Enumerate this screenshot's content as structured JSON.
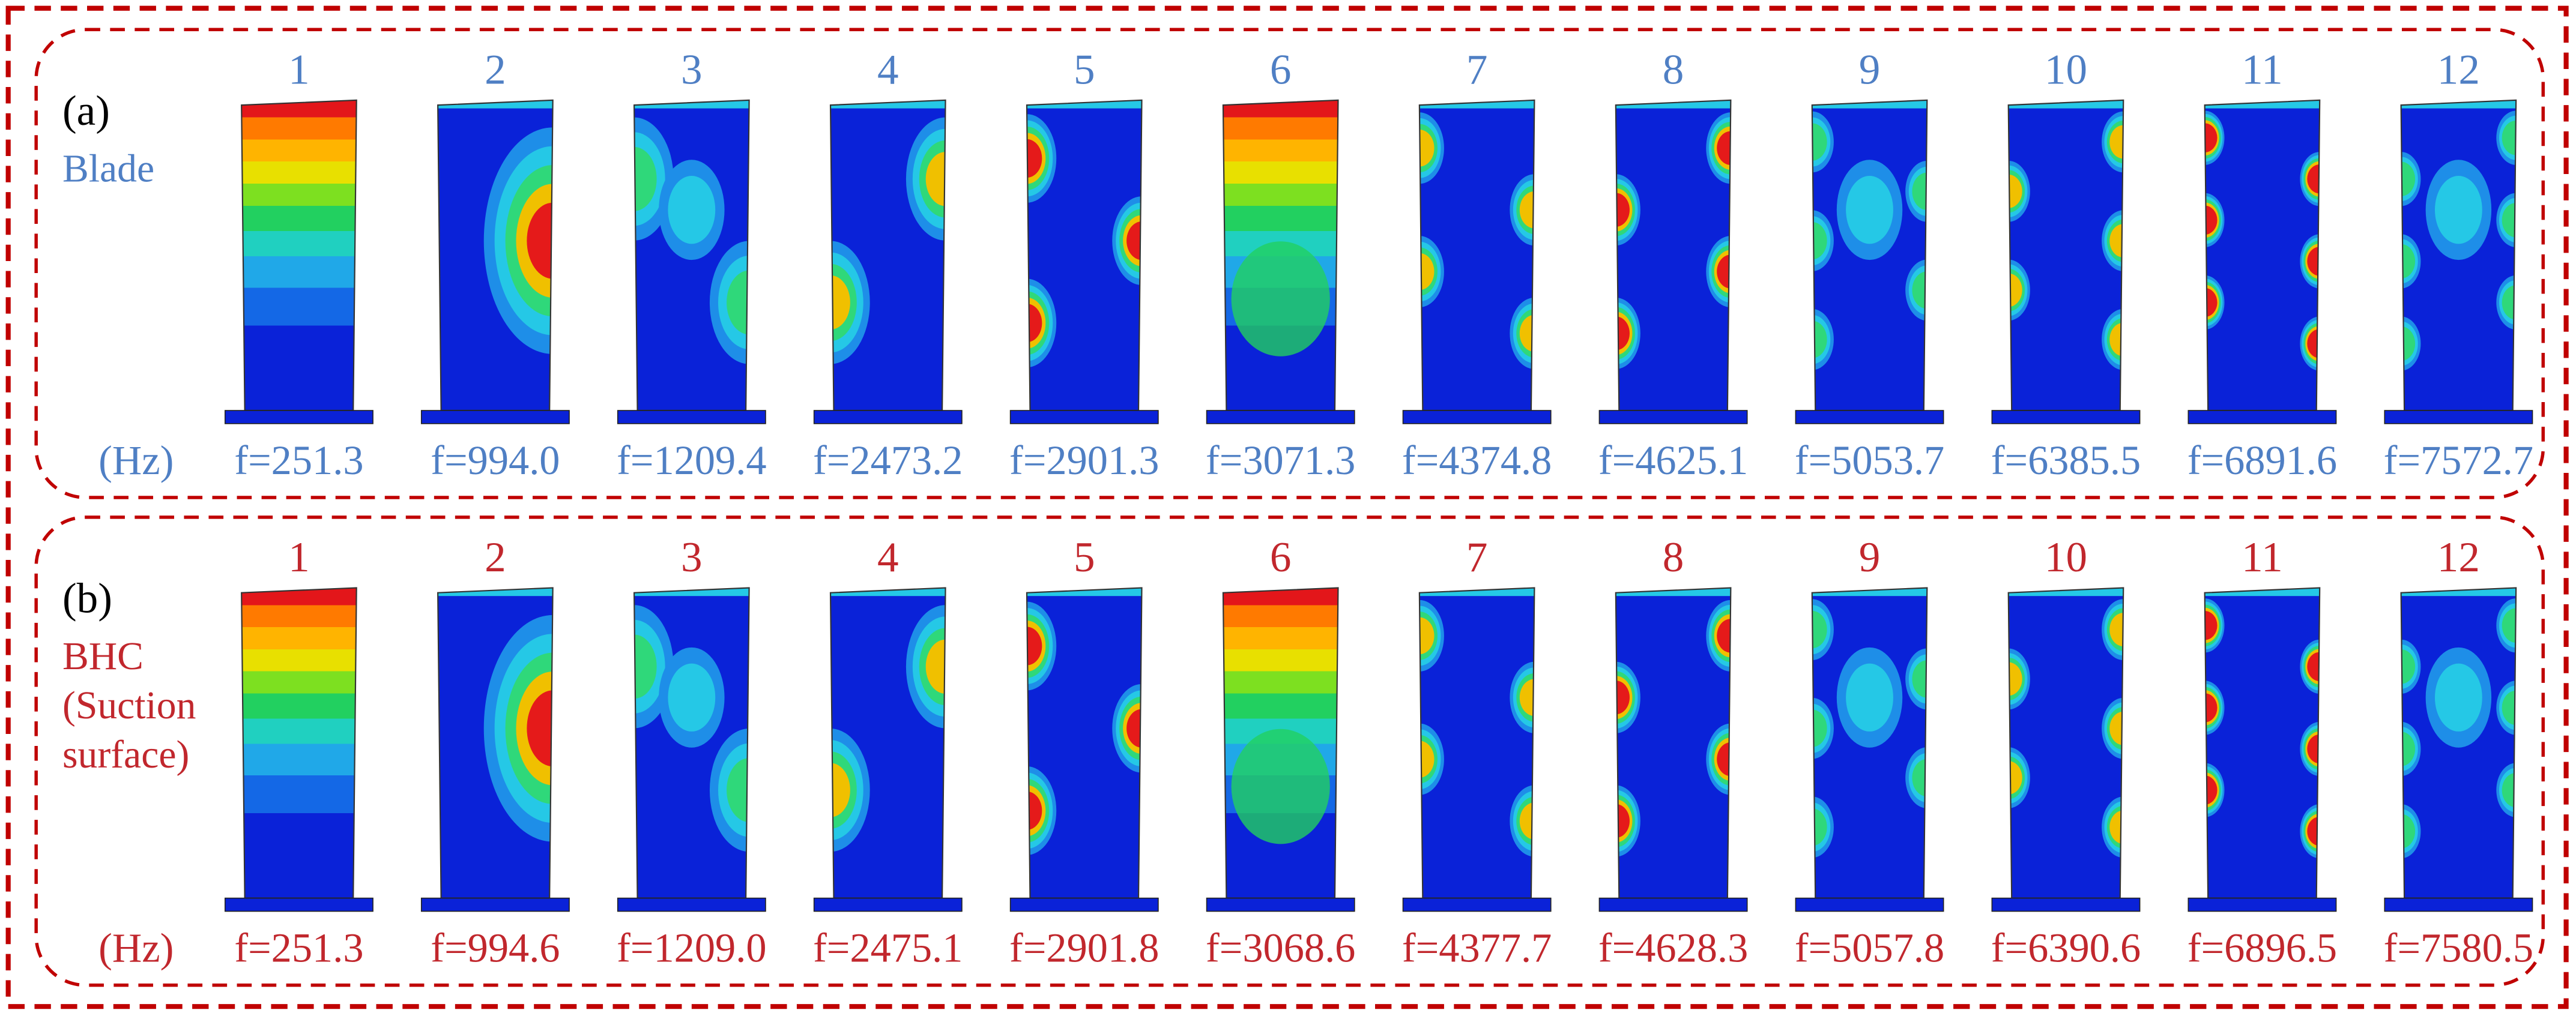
{
  "panels": [
    {
      "label": "(a)",
      "name": [
        "Blade"
      ],
      "unit": "(Hz)",
      "color": "#4f7fc4",
      "modes": [
        "1",
        "2",
        "3",
        "4",
        "5",
        "6",
        "7",
        "8",
        "9",
        "10",
        "11",
        "12"
      ],
      "frequencies": [
        "f=251.3",
        "f=994.0",
        "f=1209.4",
        "f=2473.2",
        "f=2901.3",
        "f=3071.3",
        "f=4374.8",
        "f=4625.1",
        "f=5053.7",
        "f=6385.5",
        "f=6891.6",
        "f=7572.7"
      ]
    },
    {
      "label": "(b)",
      "name": [
        "BHC",
        "(Suction",
        "surface)"
      ],
      "unit": "(Hz)",
      "color": "#c1272d",
      "modes": [
        "1",
        "2",
        "3",
        "4",
        "5",
        "6",
        "7",
        "8",
        "9",
        "10",
        "11",
        "12"
      ],
      "frequencies": [
        "f=251.3",
        "f=994.6",
        "f=1209.0",
        "f=2475.1",
        "f=2901.8",
        "f=3068.6",
        "f=4377.7",
        "f=4628.3",
        "f=5057.8",
        "f=6390.6",
        "f=6896.5",
        "f=7580.5"
      ]
    }
  ]
}
